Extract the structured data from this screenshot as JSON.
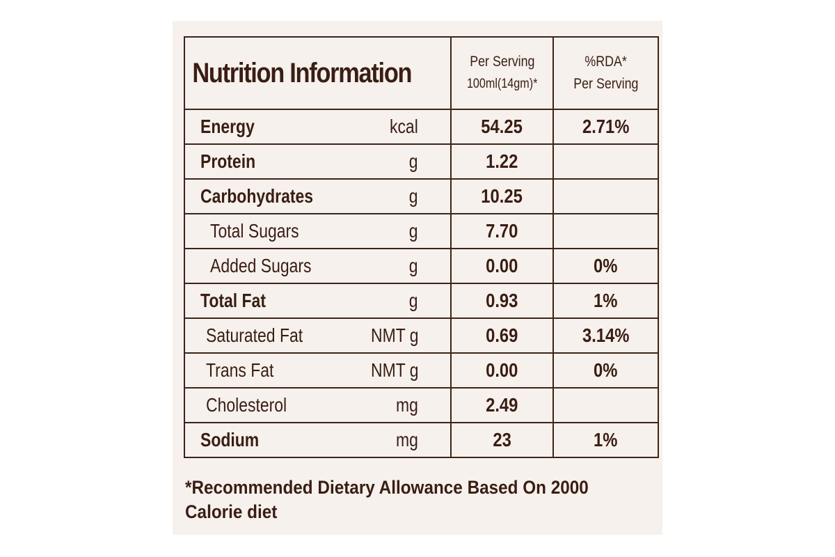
{
  "header": {
    "title": "Nutrition Information",
    "per_serving_line1": "Per Serving",
    "per_serving_line2": "100ml(14gm)*",
    "rda_line1": "%RDA*",
    "rda_line2": "Per Serving"
  },
  "rows": [
    {
      "name": "Energy",
      "unit": "kcal",
      "value": "54.25",
      "rda": "2.71%"
    },
    {
      "name": "Protein",
      "unit": "g",
      "value": "1.22",
      "rda": ""
    },
    {
      "name": "Carbohydrates",
      "unit": "g",
      "value": "10.25",
      "rda": ""
    },
    {
      "name": "Total Sugars",
      "unit": "g",
      "value": "7.70",
      "rda": ""
    },
    {
      "name": "Added Sugars",
      "unit": "g",
      "value": "0.00",
      "rda": "0%"
    },
    {
      "name": "Total Fat",
      "unit": "g",
      "value": "0.93",
      "rda": "1%"
    },
    {
      "name": "Saturated Fat",
      "unit": "NMT g",
      "value": "0.69",
      "rda": "3.14%"
    },
    {
      "name": "Trans Fat",
      "unit": "NMT g",
      "value": "0.00",
      "rda": "0%"
    },
    {
      "name": "Cholesterol",
      "unit": "mg",
      "value": "2.49",
      "rda": ""
    },
    {
      "name": "Sodium",
      "unit": "mg",
      "value": "23",
      "rda": "1%"
    }
  ],
  "footnote": {
    "line1": "*Recommended Dietary Allowance Based On 2000",
    "line2": "Calorie diet"
  }
}
